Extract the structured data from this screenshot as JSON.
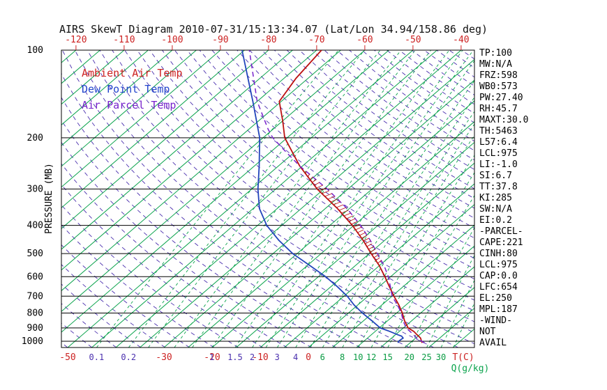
{
  "title": "AIRS SkewT Diagram 2010-07-31/15:13:34.07 (Lat/Lon 34.94/158.86 deg)",
  "colors": {
    "grid_green": "#0aa34c",
    "mixing_green": "#0aa34c",
    "dry_adiabat_purple": "#4a2fae",
    "axis_red": "#cc2222",
    "ambient_red": "#bb1111",
    "dew_blue": "#2244bb",
    "parcel_purple": "#7722cc",
    "text_black": "#000000"
  },
  "legend": {
    "items": [
      {
        "label": "Ambient Air Temp",
        "color": "#cc2222"
      },
      {
        "label": "Dew Point Temp",
        "color": "#2244cc"
      },
      {
        "label": "Air Parcel Temp",
        "color": "#7722cc"
      }
    ]
  },
  "y_axis": {
    "label": "PRESSURE (MB)"
  },
  "x_axis_top": {
    "labels": [
      -120,
      -110,
      -100,
      -90,
      -80,
      -70,
      -60,
      -50,
      -40
    ],
    "color": "#cc2222"
  },
  "x_axis_bottom": {
    "temp_labels": [
      -50,
      -30,
      -20,
      -10,
      0
    ],
    "temp_color": "#cc2222",
    "temp_unit_label": "T(C)",
    "q_unit_label": "Q(g/kg)",
    "q_unit_color": "#0aa34c",
    "q_labels": [
      {
        "text": "0.1",
        "q": 0.1,
        "color": "#4a2fae"
      },
      {
        "text": "0.2",
        "q": 0.2,
        "color": "#4a2fae"
      },
      {
        "text": "1",
        "q": 1,
        "color": "#4a2fae"
      },
      {
        "text": "1.5",
        "q": 1.5,
        "color": "#4a2fae"
      },
      {
        "text": "2",
        "q": 2,
        "color": "#4a2fae"
      },
      {
        "text": "3",
        "q": 3,
        "color": "#4a2fae"
      },
      {
        "text": "4",
        "q": 4,
        "color": "#4a2fae"
      },
      {
        "text": "6",
        "q": 6,
        "color": "#089b42"
      },
      {
        "text": "8",
        "q": 8,
        "color": "#089b42"
      },
      {
        "text": "10",
        "q": 10,
        "color": "#089b42"
      },
      {
        "text": "12",
        "q": 12,
        "color": "#089b42"
      },
      {
        "text": "15",
        "q": 15,
        "color": "#089b42"
      },
      {
        "text": "20",
        "q": 20,
        "color": "#089b42"
      },
      {
        "text": "25",
        "q": 25,
        "color": "#089b42"
      },
      {
        "text": "30",
        "q": 30,
        "color": "#089b42"
      }
    ]
  },
  "side_panel": {
    "lines": [
      "TP:100",
      "MW:N/A",
      "FRZ:598",
      "WB0:573",
      "PW:27.40",
      "RH:45.7",
      "MAXT:30.0",
      "TH:5463",
      "L57:6.4",
      "LCL:975",
      "LI:-1.0",
      "SI:6.7",
      "TT:37.8",
      "KI:285",
      "SW:N/A",
      "EI:0.2",
      "-PARCEL-",
      "CAPE:221",
      "CINH:80",
      "LCL:975",
      "CAP:0.0",
      "LFC:654",
      "EL:250",
      "MPL:187",
      "-WIND-",
      "NOT",
      "AVAIL"
    ]
  },
  "chart_data": {
    "type": "line",
    "subtype": "skew-t-log-p",
    "title": "AIRS SkewT Diagram 2010-07-31/15:13:34.07 (Lat/Lon 34.94/158.86 deg)",
    "xlabel": "T(C)",
    "ylabel": "PRESSURE (MB)",
    "pressure_ticks_mb": [
      100,
      200,
      300,
      400,
      500,
      600,
      700,
      800,
      900,
      1000
    ],
    "pressure_range_mb": [
      100,
      1050
    ],
    "temp_labels_top_c": [
      -120,
      -110,
      -100,
      -90,
      -80,
      -70,
      -60,
      -50,
      -40
    ],
    "temp_labels_bottom_c": [
      -50,
      -30,
      -20,
      -10,
      0
    ],
    "grid": {
      "isotherms_c": {
        "min": -160,
        "max": 45,
        "step": 5
      },
      "dry_adiabats_theta_k": {
        "min": 215,
        "max": 470,
        "step": 5
      },
      "mixing_ratio_lines_gkg": [
        0.1,
        0.2,
        0.3,
        0.5,
        0.7,
        1,
        1.5,
        2,
        2.5,
        3,
        4,
        5,
        6,
        7,
        8,
        10,
        12,
        15,
        20,
        25,
        30,
        35
      ]
    },
    "series": [
      {
        "id": "ambient-temp-curve",
        "name": "Ambient Air Temp",
        "color": "#bb1111",
        "width": 1.8,
        "points": [
          [
            1013,
            22.5
          ],
          [
            1000,
            22
          ],
          [
            975,
            21
          ],
          [
            950,
            19.5
          ],
          [
            925,
            18
          ],
          [
            900,
            16
          ],
          [
            850,
            13.5
          ],
          [
            800,
            11.2
          ],
          [
            750,
            8.5
          ],
          [
            700,
            5.4
          ],
          [
            650,
            2.2
          ],
          [
            600,
            -1.2
          ],
          [
            550,
            -5
          ],
          [
            500,
            -9.6
          ],
          [
            450,
            -14.5
          ],
          [
            400,
            -20.3
          ],
          [
            350,
            -27.5
          ],
          [
            300,
            -36.4
          ],
          [
            250,
            -45.6
          ],
          [
            200,
            -55.5
          ],
          [
            175,
            -60
          ],
          [
            150,
            -65.4
          ],
          [
            125,
            -67.5
          ],
          [
            100,
            -69
          ]
        ]
      },
      {
        "id": "dewpoint-curve",
        "name": "Dew Point Temp",
        "color": "#2244bb",
        "width": 1.8,
        "points": [
          [
            1013,
            17.5
          ],
          [
            1000,
            17.2
          ],
          [
            975,
            17.4
          ],
          [
            960,
            16.6
          ],
          [
            950,
            15.5
          ],
          [
            925,
            13
          ],
          [
            900,
            10.2
          ],
          [
            850,
            6.7
          ],
          [
            800,
            2.9
          ],
          [
            750,
            -0.8
          ],
          [
            700,
            -4.3
          ],
          [
            650,
            -8.6
          ],
          [
            600,
            -13.5
          ],
          [
            550,
            -19.4
          ],
          [
            500,
            -25.9
          ],
          [
            450,
            -32
          ],
          [
            400,
            -38.1
          ],
          [
            350,
            -43.7
          ],
          [
            300,
            -48.7
          ],
          [
            250,
            -54
          ],
          [
            200,
            -60.7
          ],
          [
            150,
            -70.9
          ],
          [
            100,
            -85.5
          ]
        ]
      },
      {
        "id": "parcel-temp-curve",
        "name": "Air Parcel Temp",
        "color": "#7722cc",
        "width": 1.5,
        "dash": "7 5",
        "points": [
          [
            1013,
            23
          ],
          [
            975,
            20.2
          ],
          [
            950,
            18.8
          ],
          [
            900,
            15.6
          ],
          [
            850,
            13.2
          ],
          [
            800,
            11
          ],
          [
            750,
            8.2
          ],
          [
            700,
            5.0
          ],
          [
            650,
            2.4
          ],
          [
            600,
            -0.5
          ],
          [
            550,
            -4
          ],
          [
            500,
            -8.3
          ],
          [
            450,
            -13
          ],
          [
            400,
            -18.6
          ],
          [
            350,
            -25.5
          ],
          [
            300,
            -34.3
          ],
          [
            250,
            -45.6
          ],
          [
            225,
            -51.5
          ],
          [
            200,
            -58
          ],
          [
            187,
            -61
          ],
          [
            150,
            -70
          ],
          [
            100,
            -84
          ]
        ]
      }
    ]
  }
}
